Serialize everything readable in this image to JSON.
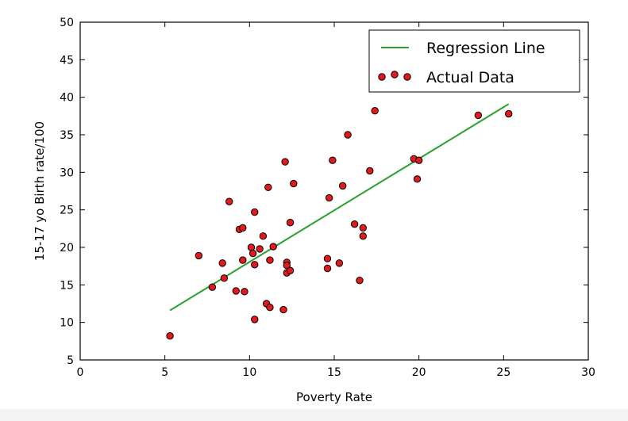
{
  "chart_data": {
    "type": "scatter",
    "xlabel": "Poverty Rate",
    "ylabel": "15-17 yo Birth rate/100",
    "xlim": [
      0,
      30
    ],
    "ylim": [
      5,
      50
    ],
    "xticks": [
      "0",
      "5",
      "10",
      "15",
      "20",
      "25",
      "30"
    ],
    "yticks": [
      "5",
      "10",
      "15",
      "20",
      "25",
      "30",
      "35",
      "40",
      "45",
      "50"
    ],
    "grid": false,
    "legend_position": "top-right",
    "series": [
      {
        "name": "Regression Line",
        "kind": "line",
        "color": "#2ca02c",
        "x": [
          5.3,
          25.3
        ],
        "y": [
          11.6,
          39.1
        ]
      },
      {
        "name": "Actual Data",
        "kind": "scatter",
        "color": "#e31a1c",
        "points": [
          [
            5.3,
            8.2
          ],
          [
            7.0,
            18.9
          ],
          [
            7.8,
            14.7
          ],
          [
            8.4,
            17.9
          ],
          [
            8.5,
            15.9
          ],
          [
            8.8,
            26.1
          ],
          [
            9.2,
            14.2
          ],
          [
            9.4,
            22.4
          ],
          [
            9.6,
            22.6
          ],
          [
            9.6,
            18.3
          ],
          [
            9.7,
            14.1
          ],
          [
            10.1,
            20.0
          ],
          [
            10.2,
            19.2
          ],
          [
            10.3,
            24.7
          ],
          [
            10.3,
            17.7
          ],
          [
            10.3,
            10.4
          ],
          [
            10.6,
            19.8
          ],
          [
            10.8,
            21.5
          ],
          [
            11.0,
            12.5
          ],
          [
            11.1,
            28.0
          ],
          [
            11.2,
            12.0
          ],
          [
            11.2,
            18.3
          ],
          [
            11.4,
            20.1
          ],
          [
            12.0,
            11.7
          ],
          [
            12.1,
            31.4
          ],
          [
            12.2,
            18.0
          ],
          [
            12.2,
            17.6
          ],
          [
            12.2,
            16.6
          ],
          [
            12.4,
            23.3
          ],
          [
            12.4,
            16.9
          ],
          [
            12.6,
            28.5
          ],
          [
            14.6,
            18.5
          ],
          [
            14.6,
            17.2
          ],
          [
            14.7,
            26.6
          ],
          [
            14.9,
            31.6
          ],
          [
            15.3,
            17.9
          ],
          [
            15.5,
            28.2
          ],
          [
            15.8,
            35.0
          ],
          [
            16.2,
            23.1
          ],
          [
            16.5,
            15.6
          ],
          [
            16.7,
            22.6
          ],
          [
            16.7,
            21.5
          ],
          [
            17.1,
            30.2
          ],
          [
            17.4,
            38.2
          ],
          [
            19.7,
            31.8
          ],
          [
            19.9,
            29.1
          ],
          [
            20.0,
            31.6
          ],
          [
            23.5,
            37.6
          ],
          [
            25.3,
            37.8
          ]
        ]
      }
    ]
  }
}
